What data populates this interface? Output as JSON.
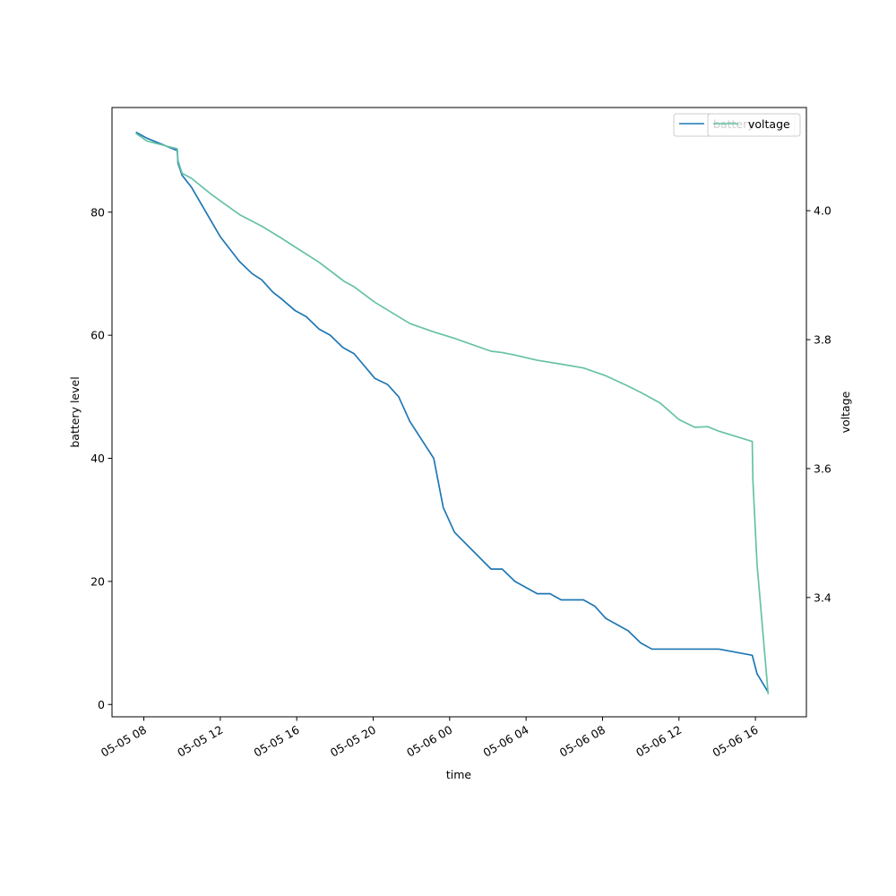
{
  "chart_data": {
    "type": "line",
    "xlabel": "time",
    "ylabel_left": "battery level",
    "ylabel_right": "voltage",
    "x_ticks": [
      "05-05 08",
      "05-05 12",
      "05-05 16",
      "05-05 20",
      "05-06 00",
      "05-06 04",
      "05-06 08",
      "05-06 12",
      "05-06 16"
    ],
    "xlim": [
      "05-05 06:20",
      "05-06 18:40"
    ],
    "ylim_left": [
      -2,
      97
    ],
    "y_ticks_left": [
      0,
      20,
      40,
      60,
      80
    ],
    "ylim_right": [
      3.215,
      4.16
    ],
    "y_ticks_right": [
      3.4,
      3.6,
      3.8,
      4.0
    ],
    "legend_placement": "top-right",
    "series": [
      {
        "name": "battery",
        "axis": "left",
        "color": "#1f77b4",
        "points": [
          [
            "05-05 07:35",
            93
          ],
          [
            "05-05 08:10",
            92
          ],
          [
            "05-05 09:45",
            90
          ],
          [
            "05-05 09:47",
            88
          ],
          [
            "05-05 10:00",
            86
          ],
          [
            "05-05 10:30",
            84
          ],
          [
            "05-05 12:00",
            76
          ],
          [
            "05-05 13:00",
            72
          ],
          [
            "05-05 13:40",
            70
          ],
          [
            "05-05 14:10",
            69
          ],
          [
            "05-05 14:45",
            67
          ],
          [
            "05-05 15:10",
            66
          ],
          [
            "05-05 15:55",
            64
          ],
          [
            "05-05 16:30",
            63
          ],
          [
            "05-05 17:10",
            61
          ],
          [
            "05-05 17:45",
            60
          ],
          [
            "05-05 18:25",
            58
          ],
          [
            "05-05 19:00",
            57
          ],
          [
            "05-05 20:05",
            53
          ],
          [
            "05-05 20:45",
            52
          ],
          [
            "05-05 21:20",
            50
          ],
          [
            "05-05 21:55",
            46
          ],
          [
            "05-05 23:10",
            40
          ],
          [
            "05-05 23:40",
            32
          ],
          [
            "05-06 00:15",
            28
          ],
          [
            "05-06 02:10",
            22
          ],
          [
            "05-06 02:45",
            22
          ],
          [
            "05-06 03:25",
            20
          ],
          [
            "05-06 04:35",
            18
          ],
          [
            "05-06 05:15",
            18
          ],
          [
            "05-06 05:50",
            17
          ],
          [
            "05-06 07:00",
            17
          ],
          [
            "05-06 07:35",
            16
          ],
          [
            "05-06 08:10",
            14
          ],
          [
            "05-06 09:20",
            12
          ],
          [
            "05-06 10:00",
            10
          ],
          [
            "05-06 10:35",
            9
          ],
          [
            "05-06 14:05",
            9
          ],
          [
            "05-06 15:50",
            8
          ],
          [
            "05-06 15:55",
            7
          ],
          [
            "05-06 16:05",
            5
          ],
          [
            "05-06 16:40",
            2
          ]
        ]
      },
      {
        "name": "voltage",
        "axis": "right",
        "color": "#66c2a5",
        "points": [
          [
            "05-05 07:35",
            4.12
          ],
          [
            "05-05 08:10",
            4.108
          ],
          [
            "05-05 09:45",
            4.096
          ],
          [
            "05-05 09:47",
            4.078
          ],
          [
            "05-05 10:00",
            4.058
          ],
          [
            "05-05 10:30",
            4.05
          ],
          [
            "05-05 11:30",
            4.026
          ],
          [
            "05-05 13:00",
            3.994
          ],
          [
            "05-05 14:10",
            3.976
          ],
          [
            "05-05 15:10",
            3.958
          ],
          [
            "05-05 16:00",
            3.942
          ],
          [
            "05-05 17:10",
            3.92
          ],
          [
            "05-05 18:30",
            3.89
          ],
          [
            "05-05 19:00",
            3.882
          ],
          [
            "05-05 20:05",
            3.858
          ],
          [
            "05-05 20:45",
            3.846
          ],
          [
            "05-05 21:55",
            3.825
          ],
          [
            "05-05 23:10",
            3.812
          ],
          [
            "05-06 00:15",
            3.802
          ],
          [
            "05-06 02:10",
            3.782
          ],
          [
            "05-06 02:45",
            3.78
          ],
          [
            "05-06 03:25",
            3.776
          ],
          [
            "05-06 04:35",
            3.768
          ],
          [
            "05-06 05:50",
            3.762
          ],
          [
            "05-06 07:00",
            3.756
          ],
          [
            "05-06 08:10",
            3.744
          ],
          [
            "05-06 09:20",
            3.728
          ],
          [
            "05-06 10:00",
            3.718
          ],
          [
            "05-06 11:00",
            3.702
          ],
          [
            "05-06 12:00",
            3.676
          ],
          [
            "05-06 12:50",
            3.664
          ],
          [
            "05-06 13:30",
            3.665
          ],
          [
            "05-06 14:05",
            3.658
          ],
          [
            "05-06 15:50",
            3.642
          ],
          [
            "05-06 15:52",
            3.582
          ],
          [
            "05-06 16:05",
            3.452
          ],
          [
            "05-06 16:40",
            3.25
          ]
        ]
      }
    ]
  }
}
